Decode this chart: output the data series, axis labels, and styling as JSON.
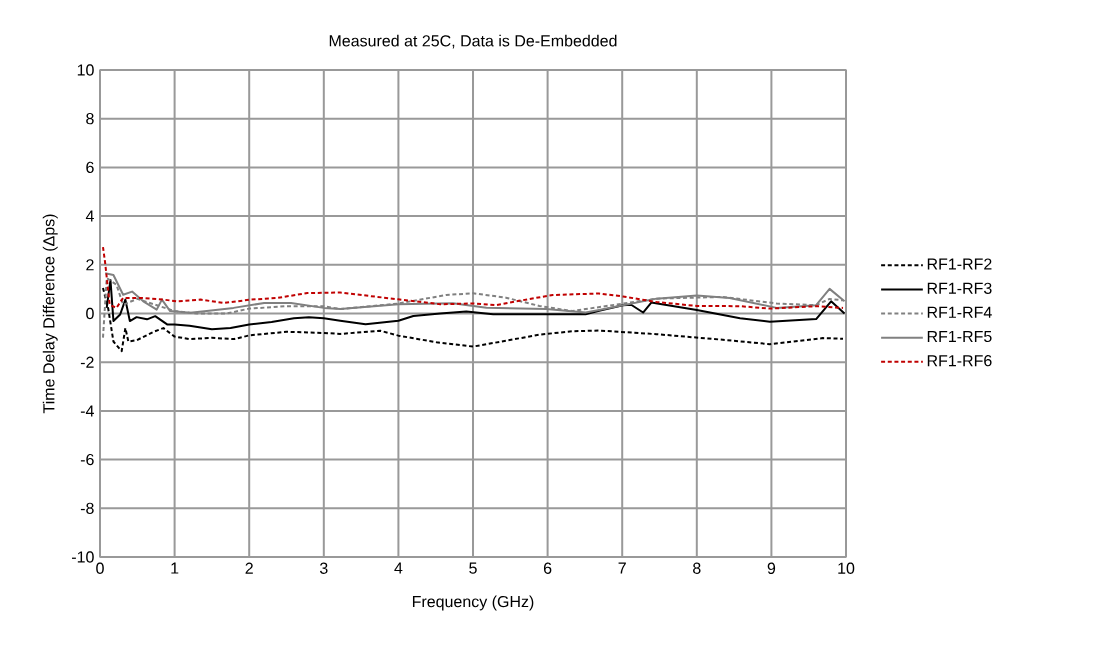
{
  "chart_data": {
    "type": "line",
    "title": "Measured at 25C, Data is De-Embedded",
    "xlabel": "Frequency (GHz)",
    "ylabel": "Time Delay Difference (Δps)",
    "xlim": [
      0,
      10
    ],
    "ylim": [
      -10,
      10
    ],
    "xticks": [
      0,
      1,
      2,
      3,
      4,
      5,
      6,
      7,
      8,
      9,
      10
    ],
    "yticks": [
      -10,
      -8,
      -6,
      -4,
      -2,
      0,
      2,
      4,
      6,
      8,
      10
    ],
    "grid": true,
    "legend": "right",
    "marker": "none",
    "series": [
      {
        "name": "RF1-RF2",
        "color": "#000000",
        "line_style": "dotted",
        "x": [
          0.04,
          0.11,
          0.18,
          0.29,
          0.34,
          0.38,
          0.49,
          0.72,
          0.85,
          1.0,
          1.2,
          1.5,
          1.8,
          2.0,
          2.5,
          3.0,
          3.22,
          3.76,
          4.0,
          4.51,
          5.0,
          5.44,
          5.89,
          6.33,
          6.69,
          7.46,
          8.35,
          8.98,
          9.69,
          9.96
        ],
        "values": [
          1.05,
          0.2,
          -1.15,
          -1.55,
          -0.6,
          -1.15,
          -1.1,
          -0.75,
          -0.6,
          -0.95,
          -1.05,
          -1.0,
          -1.05,
          -0.9,
          -0.75,
          -0.8,
          -0.84,
          -0.71,
          -0.91,
          -1.18,
          -1.36,
          -1.12,
          -0.87,
          -0.73,
          -0.7,
          -0.85,
          -1.08,
          -1.26,
          -1.01,
          -1.04
        ]
      },
      {
        "name": "RF1-RF3",
        "color": "#000000",
        "line_style": "solid",
        "x": [
          0.09,
          0.14,
          0.18,
          0.27,
          0.34,
          0.4,
          0.49,
          0.63,
          0.74,
          0.9,
          1.0,
          1.2,
          1.5,
          1.75,
          2.0,
          2.3,
          2.6,
          2.8,
          3.0,
          3.22,
          3.56,
          4.0,
          4.2,
          4.56,
          4.91,
          5.27,
          5.98,
          6.51,
          6.69,
          7.01,
          7.12,
          7.28,
          7.39,
          8.0,
          8.58,
          8.98,
          9.6,
          9.8,
          9.98
        ],
        "values": [
          0.23,
          1.38,
          -0.31,
          -0.04,
          0.57,
          -0.31,
          -0.15,
          -0.24,
          -0.11,
          -0.45,
          -0.45,
          -0.5,
          -0.65,
          -0.6,
          -0.45,
          -0.35,
          -0.2,
          -0.15,
          -0.2,
          -0.3,
          -0.44,
          -0.3,
          -0.1,
          0.0,
          0.08,
          -0.03,
          -0.03,
          -0.03,
          0.11,
          0.34,
          0.36,
          0.04,
          0.45,
          0.14,
          -0.2,
          -0.34,
          -0.23,
          0.5,
          0.0
        ]
      },
      {
        "name": "RF1-RF4",
        "color": "#808080",
        "line_style": "dotted",
        "x": [
          0.04,
          0.09,
          0.22,
          0.31,
          0.5,
          0.8,
          1.0,
          1.3,
          1.7,
          2.0,
          2.5,
          3.0,
          3.22,
          4.0,
          4.64,
          5.0,
          5.44,
          5.89,
          6.33,
          7.46,
          8.35,
          9.07,
          9.6,
          9.78,
          9.96
        ],
        "values": [
          -0.99,
          1.45,
          1.18,
          0.36,
          0.6,
          0.3,
          0.1,
          0.0,
          0.0,
          0.2,
          0.3,
          0.3,
          0.18,
          0.41,
          0.76,
          0.83,
          0.65,
          0.31,
          0.1,
          0.61,
          0.68,
          0.41,
          0.34,
          0.6,
          0.54
        ]
      },
      {
        "name": "RF1-RF5",
        "color": "#808080",
        "line_style": "solid",
        "x": [
          0.07,
          0.18,
          0.31,
          0.43,
          0.58,
          0.76,
          0.83,
          0.94,
          1.21,
          1.43,
          1.79,
          2.2,
          2.56,
          3.0,
          3.22,
          4.0,
          4.73,
          5.18,
          5.98,
          6.51,
          6.69,
          7.46,
          8.0,
          8.44,
          9.07,
          9.6,
          9.78,
          9.98
        ],
        "values": [
          1.65,
          1.58,
          0.77,
          0.9,
          0.5,
          0.16,
          0.57,
          0.1,
          0.03,
          0.1,
          0.23,
          0.43,
          0.43,
          0.23,
          0.18,
          0.38,
          0.42,
          0.24,
          0.18,
          0.04,
          0.14,
          0.61,
          0.74,
          0.64,
          0.23,
          0.34,
          1.01,
          0.5
        ]
      },
      {
        "name": "RF1-RF6",
        "color": "#c00000",
        "line_style": "dotted",
        "x": [
          0.04,
          0.07,
          0.13,
          0.22,
          0.31,
          0.54,
          0.85,
          1.03,
          1.35,
          1.66,
          2.02,
          2.38,
          2.78,
          3.22,
          4.0,
          4.56,
          5.0,
          5.31,
          5.62,
          6.07,
          6.69,
          7.01,
          7.46,
          8.0,
          8.58,
          8.98,
          9.6,
          9.96
        ],
        "values": [
          2.73,
          2.05,
          0.36,
          0.23,
          0.64,
          0.64,
          0.57,
          0.5,
          0.57,
          0.43,
          0.57,
          0.64,
          0.84,
          0.86,
          0.58,
          0.38,
          0.41,
          0.34,
          0.52,
          0.76,
          0.82,
          0.7,
          0.47,
          0.31,
          0.3,
          0.2,
          0.3,
          0.23
        ]
      }
    ]
  }
}
